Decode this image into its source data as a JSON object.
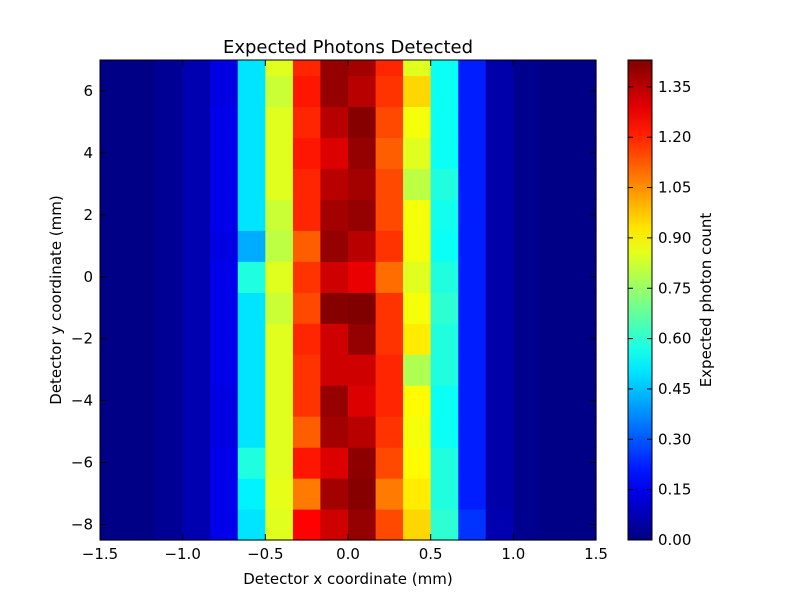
{
  "chart_data": {
    "type": "heatmap",
    "title": "Expected Photons Detected",
    "xlabel": "Detector x coordinate (mm)",
    "ylabel": "Detector y coordinate (mm)",
    "colorbar_label": "Expected photon count",
    "colormap": "jet",
    "xlim": [
      -1.5,
      1.5
    ],
    "ylim": [
      -8.5,
      7.0
    ],
    "x_ticks": [
      -1.5,
      -1.0,
      -0.5,
      0.0,
      0.5,
      1.0,
      1.5
    ],
    "x_tick_labels": [
      "−1.5",
      "−1.0",
      "−0.5",
      "0.0",
      "0.5",
      "1.0",
      "1.5"
    ],
    "y_ticks": [
      -8,
      -6,
      -4,
      -2,
      0,
      2,
      4,
      6
    ],
    "y_tick_labels": [
      "−8",
      "−6",
      "−4",
      "−2",
      "0",
      "2",
      "4",
      "6"
    ],
    "color_range": [
      0.0,
      1.43
    ],
    "colorbar_ticks": [
      0.0,
      0.15,
      0.3,
      0.45,
      0.6,
      0.75,
      0.9,
      1.05,
      1.2,
      1.35
    ],
    "colorbar_tick_labels": [
      "0.00",
      "0.15",
      "0.30",
      "0.45",
      "0.60",
      "0.75",
      "0.90",
      "1.05",
      "1.20",
      "1.35"
    ],
    "grid": false,
    "x_edges": [
      -1.5,
      -1.333,
      -1.167,
      -1.0,
      -0.833,
      -0.667,
      -0.5,
      -0.333,
      -0.167,
      0.0,
      0.167,
      0.333,
      0.5,
      0.667,
      0.833,
      1.0,
      1.167,
      1.333,
      1.5
    ],
    "y_edges": [
      -8.5,
      -7.5,
      -6.5,
      -5.5,
      -4.5,
      -3.5,
      -2.5,
      -1.5,
      -0.5,
      0.5,
      1.5,
      2.5,
      3.5,
      4.5,
      5.5,
      6.5,
      7.0
    ],
    "values": [
      [
        0.01,
        0.01,
        0.03,
        0.07,
        0.15,
        0.5,
        0.85,
        1.25,
        1.32,
        1.4,
        1.15,
        0.95,
        0.6,
        0.25,
        0.07,
        0.02,
        0.01,
        0.01
      ],
      [
        0.01,
        0.01,
        0.03,
        0.07,
        0.15,
        0.52,
        0.86,
        1.08,
        1.38,
        1.42,
        1.08,
        0.92,
        0.58,
        0.22,
        0.06,
        0.02,
        0.01,
        0.01
      ],
      [
        0.01,
        0.01,
        0.03,
        0.07,
        0.15,
        0.58,
        0.85,
        1.22,
        1.3,
        1.41,
        1.15,
        0.9,
        0.58,
        0.22,
        0.06,
        0.02,
        0.01,
        0.01
      ],
      [
        0.01,
        0.01,
        0.03,
        0.07,
        0.14,
        0.5,
        0.85,
        1.12,
        1.38,
        1.35,
        1.18,
        0.88,
        0.55,
        0.22,
        0.06,
        0.02,
        0.01,
        0.01
      ],
      [
        0.01,
        0.01,
        0.03,
        0.07,
        0.14,
        0.5,
        0.85,
        1.18,
        1.4,
        1.3,
        1.2,
        0.9,
        0.55,
        0.22,
        0.06,
        0.02,
        0.01,
        0.01
      ],
      [
        0.01,
        0.01,
        0.03,
        0.07,
        0.15,
        0.5,
        0.85,
        1.18,
        1.32,
        1.32,
        1.2,
        0.78,
        0.58,
        0.22,
        0.06,
        0.02,
        0.01,
        0.01
      ],
      [
        0.01,
        0.01,
        0.03,
        0.07,
        0.15,
        0.5,
        0.85,
        1.2,
        1.32,
        1.4,
        1.18,
        0.92,
        0.58,
        0.22,
        0.06,
        0.02,
        0.01,
        0.01
      ],
      [
        0.01,
        0.01,
        0.03,
        0.07,
        0.15,
        0.5,
        0.82,
        1.15,
        1.42,
        1.43,
        1.18,
        0.88,
        0.6,
        0.22,
        0.06,
        0.02,
        0.01,
        0.01
      ],
      [
        0.01,
        0.01,
        0.03,
        0.07,
        0.15,
        0.58,
        0.85,
        1.18,
        1.32,
        1.28,
        1.1,
        0.85,
        0.58,
        0.22,
        0.06,
        0.02,
        0.01,
        0.01
      ],
      [
        0.01,
        0.01,
        0.03,
        0.07,
        0.14,
        0.42,
        0.8,
        1.12,
        1.4,
        1.35,
        1.18,
        0.88,
        0.55,
        0.22,
        0.06,
        0.02,
        0.01,
        0.01
      ],
      [
        0.01,
        0.01,
        0.03,
        0.07,
        0.15,
        0.5,
        0.82,
        1.2,
        1.38,
        1.4,
        1.15,
        0.88,
        0.56,
        0.22,
        0.06,
        0.02,
        0.01,
        0.01
      ],
      [
        0.01,
        0.01,
        0.03,
        0.07,
        0.15,
        0.5,
        0.85,
        1.2,
        1.35,
        1.38,
        1.15,
        0.8,
        0.58,
        0.22,
        0.06,
        0.02,
        0.01,
        0.01
      ],
      [
        0.01,
        0.01,
        0.03,
        0.07,
        0.15,
        0.5,
        0.85,
        1.22,
        1.3,
        1.4,
        1.12,
        0.85,
        0.55,
        0.22,
        0.06,
        0.02,
        0.01,
        0.01
      ],
      [
        0.01,
        0.01,
        0.03,
        0.07,
        0.15,
        0.5,
        0.85,
        1.2,
        1.35,
        1.42,
        1.15,
        0.88,
        0.55,
        0.22,
        0.06,
        0.02,
        0.01,
        0.01
      ],
      [
        0.01,
        0.01,
        0.03,
        0.07,
        0.14,
        0.5,
        0.82,
        1.22,
        1.4,
        1.35,
        1.18,
        0.95,
        0.55,
        0.22,
        0.06,
        0.02,
        0.01,
        0.01
      ],
      [
        0.01,
        0.01,
        0.03,
        0.07,
        0.14,
        0.5,
        0.85,
        1.2,
        1.4,
        1.38,
        1.2,
        0.85,
        0.55,
        0.22,
        0.06,
        0.02,
        0.01,
        0.01
      ]
    ]
  }
}
